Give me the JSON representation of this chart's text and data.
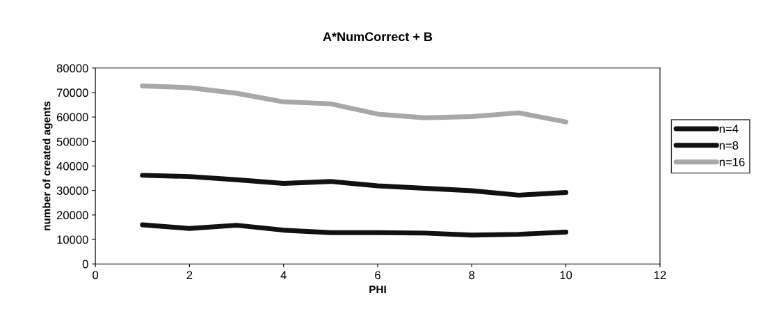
{
  "chart_data": {
    "type": "line",
    "title": "A*NumCorrect + B",
    "xlabel": "PHI",
    "ylabel": "number of created agents",
    "x": [
      1,
      2,
      3,
      4,
      5,
      6,
      7,
      8,
      9,
      10
    ],
    "series": [
      {
        "name": "n=4",
        "color": "#111111",
        "values": [
          16000,
          14500,
          15800,
          13800,
          12800,
          12800,
          12600,
          11800,
          12100,
          13000
        ]
      },
      {
        "name": "n=8",
        "color": "#111111",
        "values": [
          36200,
          35700,
          34400,
          32900,
          33700,
          31900,
          30900,
          29900,
          28100,
          29200
        ]
      },
      {
        "name": "n=16",
        "color": "#a8a8a8",
        "values": [
          72700,
          72000,
          69700,
          66200,
          65400,
          61200,
          59700,
          60200,
          61700,
          58000
        ]
      }
    ],
    "xlim": [
      0,
      12
    ],
    "xticks": [
      0,
      2,
      4,
      6,
      8,
      10,
      12
    ],
    "ylim": [
      0,
      80000
    ],
    "yticks": [
      0,
      10000,
      20000,
      30000,
      40000,
      50000,
      60000,
      70000,
      80000
    ],
    "grid": false,
    "legend": "right",
    "marker": "none",
    "line_style": "solid"
  }
}
